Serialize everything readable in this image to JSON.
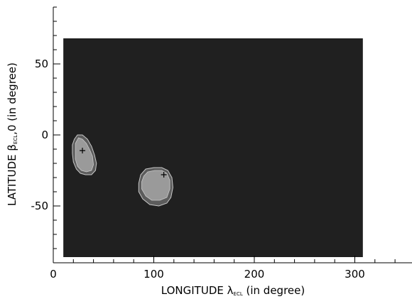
{
  "chart_data": {
    "type": "contour",
    "xlabel": {
      "prefix": "LONGITUDE ",
      "symbol": "λ",
      "subscript": "ECL",
      "suffix": " (in degree)"
    },
    "ylabel": {
      "prefix": "LATITUDE ",
      "symbol": "β",
      "subscript": "ECL",
      "suffix": ",0 (in degree)"
    },
    "xlim": [
      0,
      360
    ],
    "ylim": [
      -90,
      90
    ],
    "x_ticks": [
      0,
      100,
      200,
      300
    ],
    "y_ticks": [
      -50,
      0,
      50
    ],
    "x_minor_step": 20,
    "y_minor_step": 10,
    "map_region": {
      "lon": [
        10,
        308
      ],
      "lat": [
        -86,
        68
      ]
    },
    "colors": {
      "background": "#202020",
      "outer_contour": "#5c5c5c",
      "inner_contour": "#9a9a9a",
      "contour_line": "#c8c8c8",
      "axis": "#000000"
    },
    "regions": [
      {
        "name": "region-1",
        "marker": {
          "lon": 29,
          "lat": -11
        },
        "outer": [
          [
            24,
            0
          ],
          [
            29,
            0
          ],
          [
            34,
            -3
          ],
          [
            38,
            -8
          ],
          [
            41,
            -14
          ],
          [
            43,
            -20
          ],
          [
            42,
            -25
          ],
          [
            38,
            -28
          ],
          [
            32,
            -28
          ],
          [
            27,
            -27
          ],
          [
            23,
            -24
          ],
          [
            20,
            -19
          ],
          [
            19,
            -13
          ],
          [
            19,
            -7
          ],
          [
            21,
            -3
          ]
        ],
        "inner": [
          [
            25,
            -2
          ],
          [
            29,
            -3
          ],
          [
            33,
            -6
          ],
          [
            36,
            -10
          ],
          [
            39,
            -15
          ],
          [
            40,
            -21
          ],
          [
            38,
            -25
          ],
          [
            33,
            -26
          ],
          [
            28,
            -25
          ],
          [
            24,
            -22
          ],
          [
            22,
            -17
          ],
          [
            22,
            -11
          ],
          [
            22,
            -6
          ]
        ]
      },
      {
        "name": "region-2",
        "marker": {
          "lon": 110,
          "lat": -28
        },
        "outer": [
          [
            92,
            -24
          ],
          [
            100,
            -23
          ],
          [
            108,
            -23
          ],
          [
            114,
            -25
          ],
          [
            118,
            -30
          ],
          [
            119,
            -37
          ],
          [
            117,
            -44
          ],
          [
            113,
            -48
          ],
          [
            105,
            -50
          ],
          [
            96,
            -49
          ],
          [
            89,
            -45
          ],
          [
            85,
            -40
          ],
          [
            85,
            -34
          ],
          [
            87,
            -28
          ]
        ],
        "inner": [
          [
            94,
            -26
          ],
          [
            101,
            -25
          ],
          [
            108,
            -25
          ],
          [
            113,
            -27
          ],
          [
            116,
            -32
          ],
          [
            116,
            -38
          ],
          [
            113,
            -44
          ],
          [
            106,
            -46
          ],
          [
            98,
            -46
          ],
          [
            92,
            -43
          ],
          [
            88,
            -38
          ],
          [
            88,
            -33
          ],
          [
            90,
            -29
          ]
        ]
      }
    ]
  }
}
